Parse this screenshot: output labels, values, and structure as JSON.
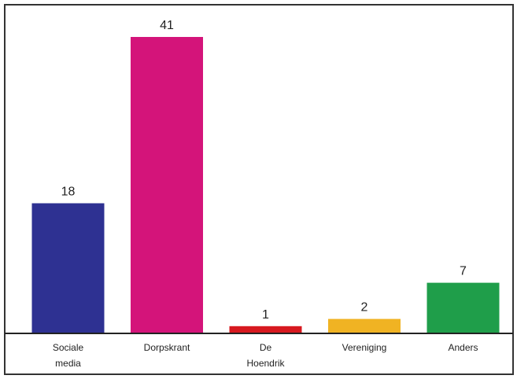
{
  "chart_data": {
    "type": "bar",
    "categories": [
      [
        "Sociale",
        "media"
      ],
      [
        "Dorpskrant"
      ],
      [
        "De",
        "Hoendrik"
      ],
      [
        "Vereniging"
      ],
      [
        "Anders"
      ]
    ],
    "values": [
      18,
      41,
      1,
      2,
      7
    ],
    "value_labels": [
      "18",
      "41",
      "1",
      "2",
      "7"
    ],
    "colors": [
      "#2e3192",
      "#d4147a",
      "#d7191f",
      "#f0b323",
      "#1f9e4a"
    ],
    "ylim": [
      0,
      41
    ],
    "grid": false,
    "legend": "none"
  }
}
